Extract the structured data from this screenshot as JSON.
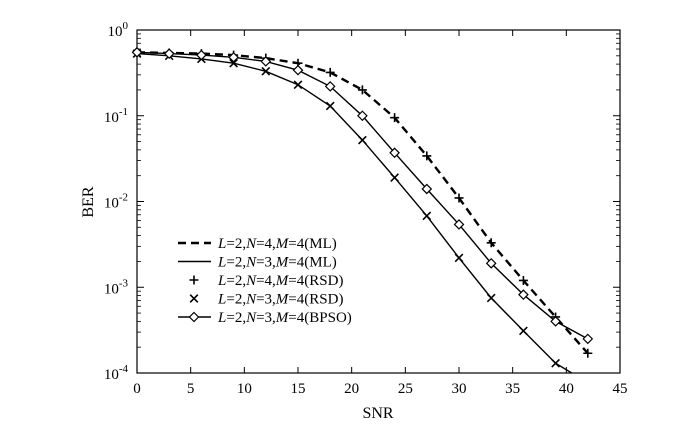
{
  "chart_data": {
    "type": "line",
    "title": "",
    "xlabel": "SNR",
    "ylabel": "BER",
    "xlim": [
      0,
      45
    ],
    "ylim": [
      0.0001,
      1
    ],
    "yscale": "log",
    "grid": false,
    "legend_position": "lower-left",
    "x_ticks": [
      "0",
      "5",
      "10",
      "15",
      "20",
      "25",
      "30",
      "35",
      "40",
      "45"
    ],
    "y_ticks": [
      {
        "base": "10",
        "exp": "0",
        "value": 1
      },
      {
        "base": "10",
        "exp": "-1",
        "value": 0.1
      },
      {
        "base": "10",
        "exp": "-2",
        "value": 0.01
      },
      {
        "base": "10",
        "exp": "-3",
        "value": 0.001
      },
      {
        "base": "10",
        "exp": "-4",
        "value": 0.0001
      }
    ],
    "series": [
      {
        "name": "L=2,N=4,M=4(ML)",
        "legend": {
          "L": "2",
          "N": "4",
          "M": "4",
          "method": "ML"
        },
        "style": "dashed",
        "marker": "none",
        "x": [
          0,
          3,
          6,
          9,
          12,
          15,
          18,
          21,
          24,
          27,
          30,
          33,
          36,
          39,
          42
        ],
        "y": [
          0.55,
          0.54,
          0.53,
          0.51,
          0.47,
          0.41,
          0.32,
          0.2,
          0.095,
          0.034,
          0.011,
          0.0033,
          0.0012,
          0.00045,
          0.00017
        ]
      },
      {
        "name": "L=2,N=3,M=4(ML)",
        "legend": {
          "L": "2",
          "N": "3",
          "M": "4",
          "method": "ML"
        },
        "style": "solid",
        "marker": "none",
        "x": [
          0,
          3,
          6,
          9,
          12,
          15,
          18,
          21,
          24,
          27,
          30,
          33,
          36,
          39,
          40.5
        ],
        "y": [
          0.53,
          0.5,
          0.46,
          0.41,
          0.33,
          0.23,
          0.13,
          0.052,
          0.019,
          0.0068,
          0.0022,
          0.00075,
          0.00031,
          0.00013,
          0.0001
        ]
      },
      {
        "name": "L=2,N=4,M=4(RSD)",
        "legend": {
          "L": "2",
          "N": "4",
          "M": "4",
          "method": "RSD"
        },
        "style": "none",
        "marker": "plus",
        "x": [
          0,
          3,
          6,
          9,
          12,
          15,
          18,
          21,
          24,
          27,
          30,
          33,
          36,
          39,
          42
        ],
        "y": [
          0.55,
          0.54,
          0.53,
          0.51,
          0.47,
          0.41,
          0.32,
          0.2,
          0.095,
          0.034,
          0.011,
          0.0033,
          0.0012,
          0.00045,
          0.00017
        ]
      },
      {
        "name": "L=2,N=3,M=4(RSD)",
        "legend": {
          "L": "2",
          "N": "3",
          "M": "4",
          "method": "RSD"
        },
        "style": "none",
        "marker": "cross",
        "x": [
          0,
          3,
          6,
          9,
          12,
          15,
          18,
          21,
          24,
          27,
          30,
          33,
          36,
          39
        ],
        "y": [
          0.53,
          0.5,
          0.46,
          0.41,
          0.33,
          0.23,
          0.13,
          0.052,
          0.019,
          0.0068,
          0.0022,
          0.00075,
          0.00031,
          0.00013
        ]
      },
      {
        "name": "L=2,N=3,M=4(BPSO)",
        "legend": {
          "L": "2",
          "N": "3",
          "M": "4",
          "method": "BPSO"
        },
        "style": "solid",
        "marker": "diamond",
        "x": [
          0,
          3,
          6,
          9,
          12,
          15,
          18,
          21,
          24,
          27,
          30,
          33,
          36,
          39,
          42
        ],
        "y": [
          0.55,
          0.53,
          0.51,
          0.48,
          0.43,
          0.34,
          0.22,
          0.1,
          0.037,
          0.014,
          0.0054,
          0.0019,
          0.00082,
          0.0004,
          0.00025
        ]
      }
    ]
  }
}
